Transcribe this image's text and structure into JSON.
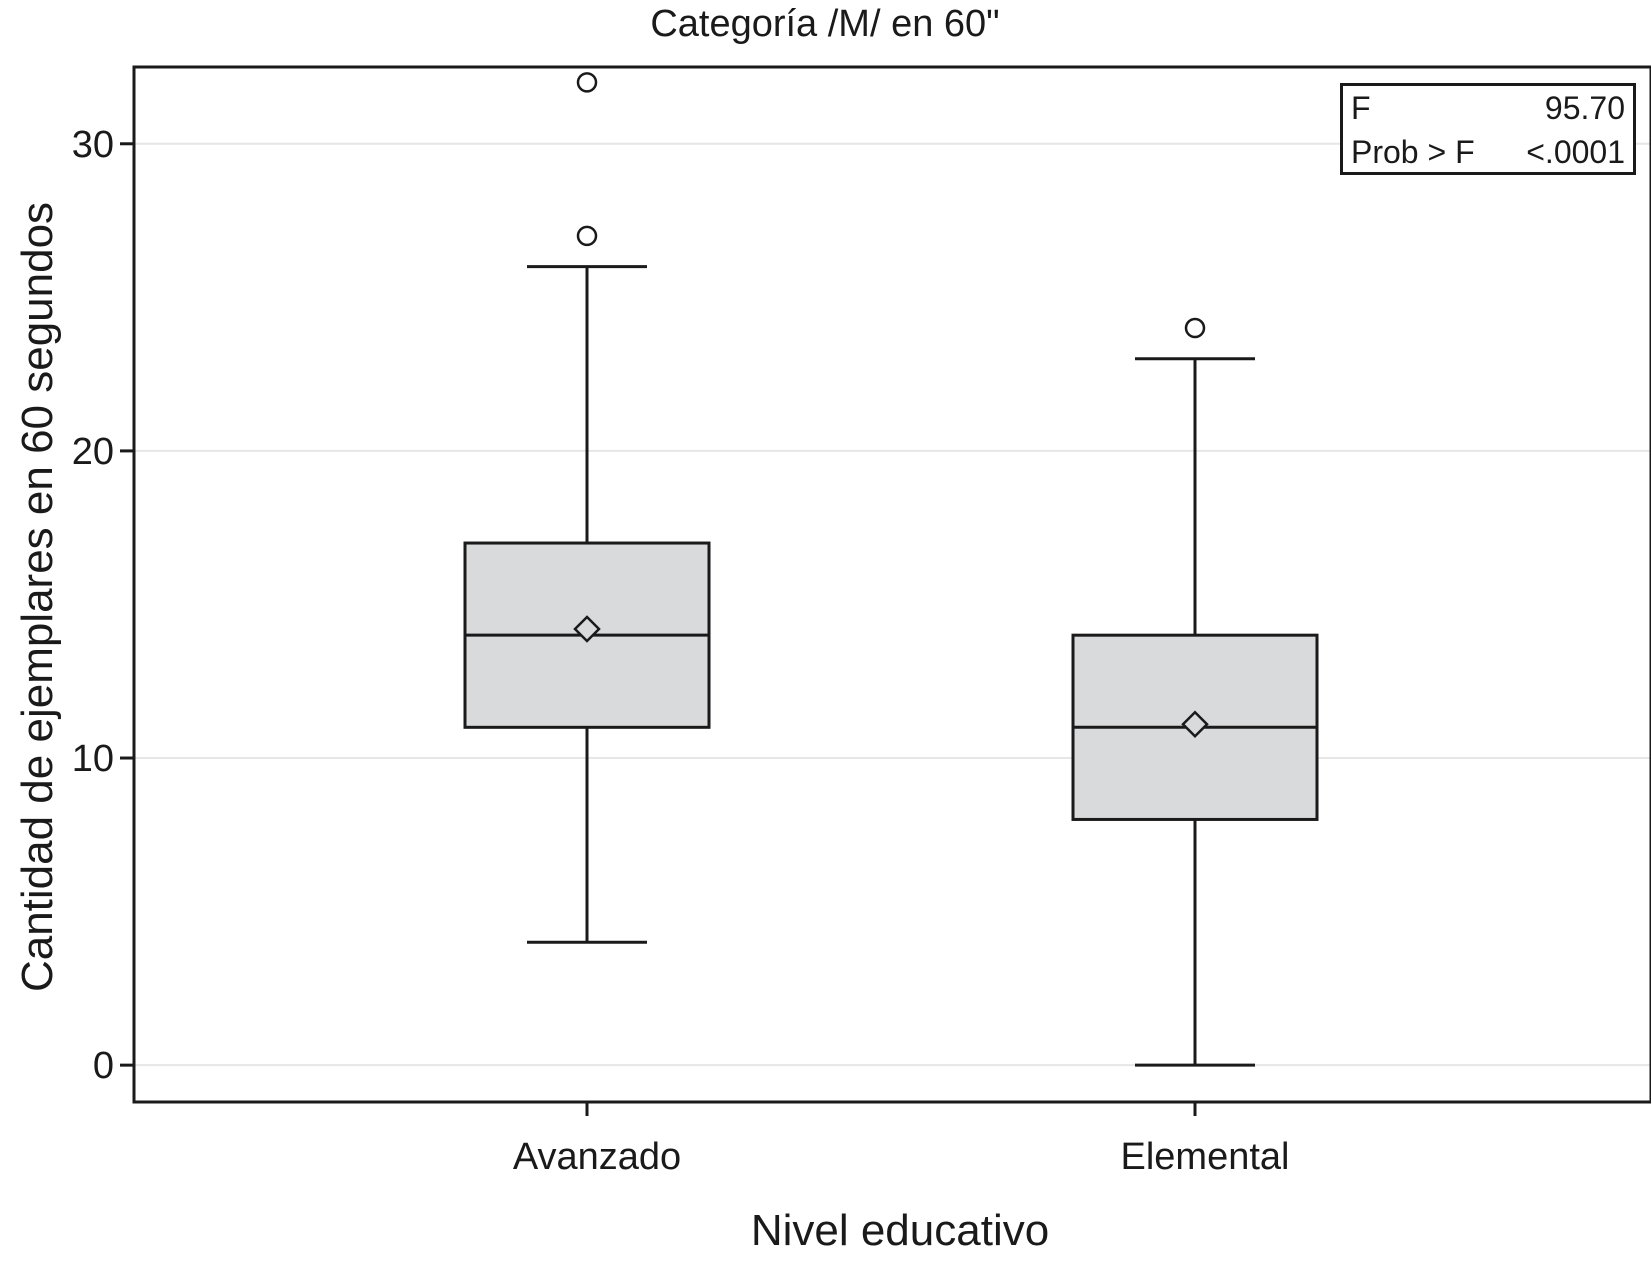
{
  "chart_data": {
    "type": "box",
    "title": "Categoría /M/ en 60\"",
    "xlabel": "Nivel educativo",
    "ylabel": "Cantidad de ejemplares en 60 segundos",
    "ylim": [
      -1.2,
      32.5
    ],
    "yticks": [
      0,
      10,
      20,
      30
    ],
    "grid": "horizontal",
    "categories": [
      "Avanzado",
      "Elemental"
    ],
    "boxes": [
      {
        "category": "Avanzado",
        "whisker_low": 4,
        "q1": 11,
        "median": 14,
        "q3": 17,
        "whisker_high": 26,
        "mean": 14.2,
        "outliers": [
          27,
          32
        ]
      },
      {
        "category": "Elemental",
        "whisker_low": 0,
        "q1": 8,
        "median": 11,
        "q3": 14,
        "whisker_high": 23,
        "mean": 11.1,
        "outliers": [
          24
        ]
      }
    ],
    "colors": {
      "box_fill": "#d9dadc",
      "stroke": "#1a1a1a",
      "grid": "#e6e6e6"
    },
    "annotations": {
      "stats_table": [
        {
          "label": "F",
          "value": "95.70"
        },
        {
          "label": "Prob > F",
          "value": "<.0001"
        }
      ],
      "placement": "top-right"
    }
  }
}
